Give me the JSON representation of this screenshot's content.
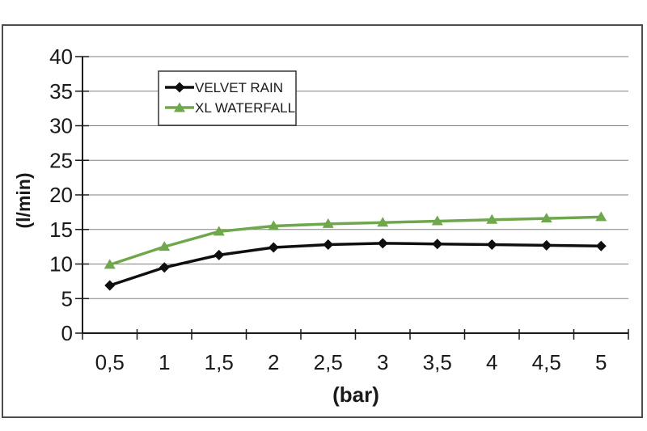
{
  "chart_data": {
    "type": "line",
    "xlabel": "(bar)",
    "ylabel": "(l/min)",
    "x": [
      0.5,
      1,
      1.5,
      2,
      2.5,
      3,
      3.5,
      4,
      4.5,
      5
    ],
    "x_tick_labels": [
      "0,5",
      "1",
      "1,5",
      "2",
      "2,5",
      "3",
      "3,5",
      "4",
      "4,5",
      "5"
    ],
    "ylim": [
      0,
      40
    ],
    "y_tick_step": 5,
    "grid": true,
    "legend_position": "top-center-inside",
    "series": [
      {
        "name": "VELVET RAIN",
        "marker": "diamond",
        "color": "#0f0f0f",
        "values": [
          6.9,
          9.5,
          11.3,
          12.4,
          12.8,
          13.0,
          12.9,
          12.8,
          12.7,
          12.6
        ]
      },
      {
        "name": "XL WATERFALL",
        "marker": "triangle",
        "color": "#6fa84c",
        "values": [
          9.9,
          12.5,
          14.7,
          15.5,
          15.8,
          16.0,
          16.2,
          16.4,
          16.6,
          16.8
        ]
      }
    ]
  },
  "colors": {
    "grid": "#808080",
    "axis": "#1a1a1a",
    "frame": "#4d4d4d",
    "background": "#ffffff"
  }
}
